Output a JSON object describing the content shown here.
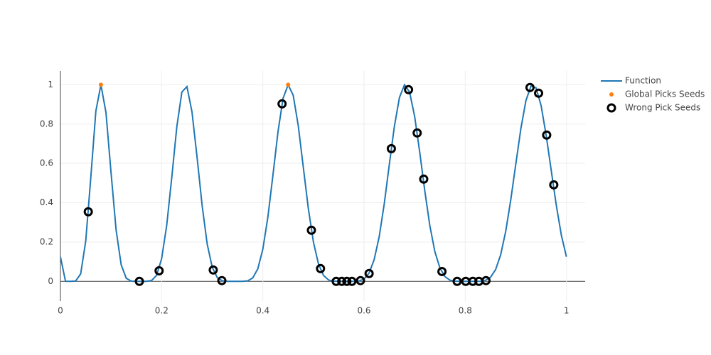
{
  "chart_data": {
    "type": "line",
    "xlim": [
      0,
      1.037
    ],
    "ylim": [
      -0.1,
      1.07
    ],
    "xticks": [
      0,
      0.2,
      0.4,
      0.6,
      0.8,
      1
    ],
    "yticks": [
      0,
      0.2,
      0.4,
      0.6,
      0.8,
      1
    ],
    "grid": true,
    "legend": "top-right",
    "series": [
      {
        "name": "Function",
        "type": "line",
        "color": "#1f77b4",
        "x": [
          0,
          0.01,
          0.02,
          0.03,
          0.04,
          0.05,
          0.06,
          0.07,
          0.08,
          0.09,
          0.1,
          0.11,
          0.12,
          0.13,
          0.14,
          0.15,
          0.16,
          0.17,
          0.18,
          0.19,
          0.2,
          0.21,
          0.22,
          0.23,
          0.24,
          0.25,
          0.26,
          0.27,
          0.28,
          0.29,
          0.3,
          0.31,
          0.32,
          0.33,
          0.34,
          0.35,
          0.36,
          0.37,
          0.38,
          0.39,
          0.4,
          0.41,
          0.42,
          0.43,
          0.44,
          0.45,
          0.46,
          0.47,
          0.48,
          0.49,
          0.5,
          0.51,
          0.52,
          0.53,
          0.54,
          0.55,
          0.56,
          0.57,
          0.58,
          0.59,
          0.6,
          0.61,
          0.62,
          0.63,
          0.64,
          0.65,
          0.66,
          0.67,
          0.68,
          0.69,
          0.7,
          0.71,
          0.72,
          0.73,
          0.74,
          0.75,
          0.76,
          0.77,
          0.78,
          0.79,
          0.8,
          0.81,
          0.82,
          0.83,
          0.84,
          0.85,
          0.86,
          0.87,
          0.88,
          0.89,
          0.9,
          0.91,
          0.92,
          0.93,
          0.94,
          0.95,
          0.96,
          0.97,
          0.98,
          0.99,
          1
        ],
        "values": [
          0.125,
          0.0005,
          0,
          0.0016,
          0.0381,
          0.205,
          0.528,
          0.866,
          1,
          0.8586,
          0.5535,
          0.262,
          0.0845,
          0.016,
          0.0012,
          0,
          0,
          0.0001,
          0.0042,
          0.0306,
          0.1152,
          0.2844,
          0.528,
          0.786,
          0.963,
          0.9907,
          0.862,
          0.632,
          0.3866,
          0.1903,
          0.0718,
          0.0188,
          0.0029,
          0.0001,
          0,
          0,
          0.0002,
          0.0027,
          0.0174,
          0.0634,
          0.1637,
          0.3276,
          0.5411,
          0.7615,
          0.9312,
          1,
          0.9466,
          0.7925,
          0.5803,
          0.3687,
          0.1998,
          0.0881,
          0.0298,
          0.007,
          0.0009,
          0,
          0,
          0,
          0.0001,
          0.0021,
          0.0119,
          0.0423,
          0.1104,
          0.2273,
          0.3953,
          0.595,
          0.7886,
          0.9352,
          1,
          0.963,
          0.8397,
          0.6583,
          0.4622,
          0.2841,
          0.1514,
          0.0678,
          0.0237,
          0.006,
          0.0009,
          0,
          0,
          0,
          0,
          0.0008,
          0.0053,
          0.021,
          0.0597,
          0.1347,
          0.2544,
          0.4148,
          0.5978,
          0.7779,
          0.92,
          0.9934,
          0.984,
          0.8934,
          0.7422,
          0.5634,
          0.3866,
          0.2345,
          0.125
        ]
      },
      {
        "name": "Global Picks Seeds",
        "type": "scatter",
        "color": "#ff7f0e",
        "x": [
          0.08,
          0.45
        ],
        "values": [
          1,
          1
        ]
      },
      {
        "name": "Wrong Pick Seeds",
        "type": "scatter-open",
        "color": "#000000",
        "x": [
          0.055,
          0.156,
          0.195,
          0.302,
          0.319,
          0.438,
          0.496,
          0.514,
          0.545,
          0.556,
          0.566,
          0.576,
          0.593,
          0.61,
          0.654,
          0.688,
          0.705,
          0.718,
          0.754,
          0.784,
          0.801,
          0.815,
          0.827,
          0.841,
          0.928,
          0.945,
          0.961,
          0.975
        ],
        "values": [
          0.354,
          0,
          0.054,
          0.058,
          0.004,
          0.903,
          0.26,
          0.065,
          0,
          0,
          0,
          0,
          0.004,
          0.04,
          0.675,
          0.975,
          0.755,
          0.52,
          0.05,
          0,
          0,
          0,
          0,
          0.004,
          0.986,
          0.957,
          0.744,
          0.491
        ]
      }
    ]
  }
}
